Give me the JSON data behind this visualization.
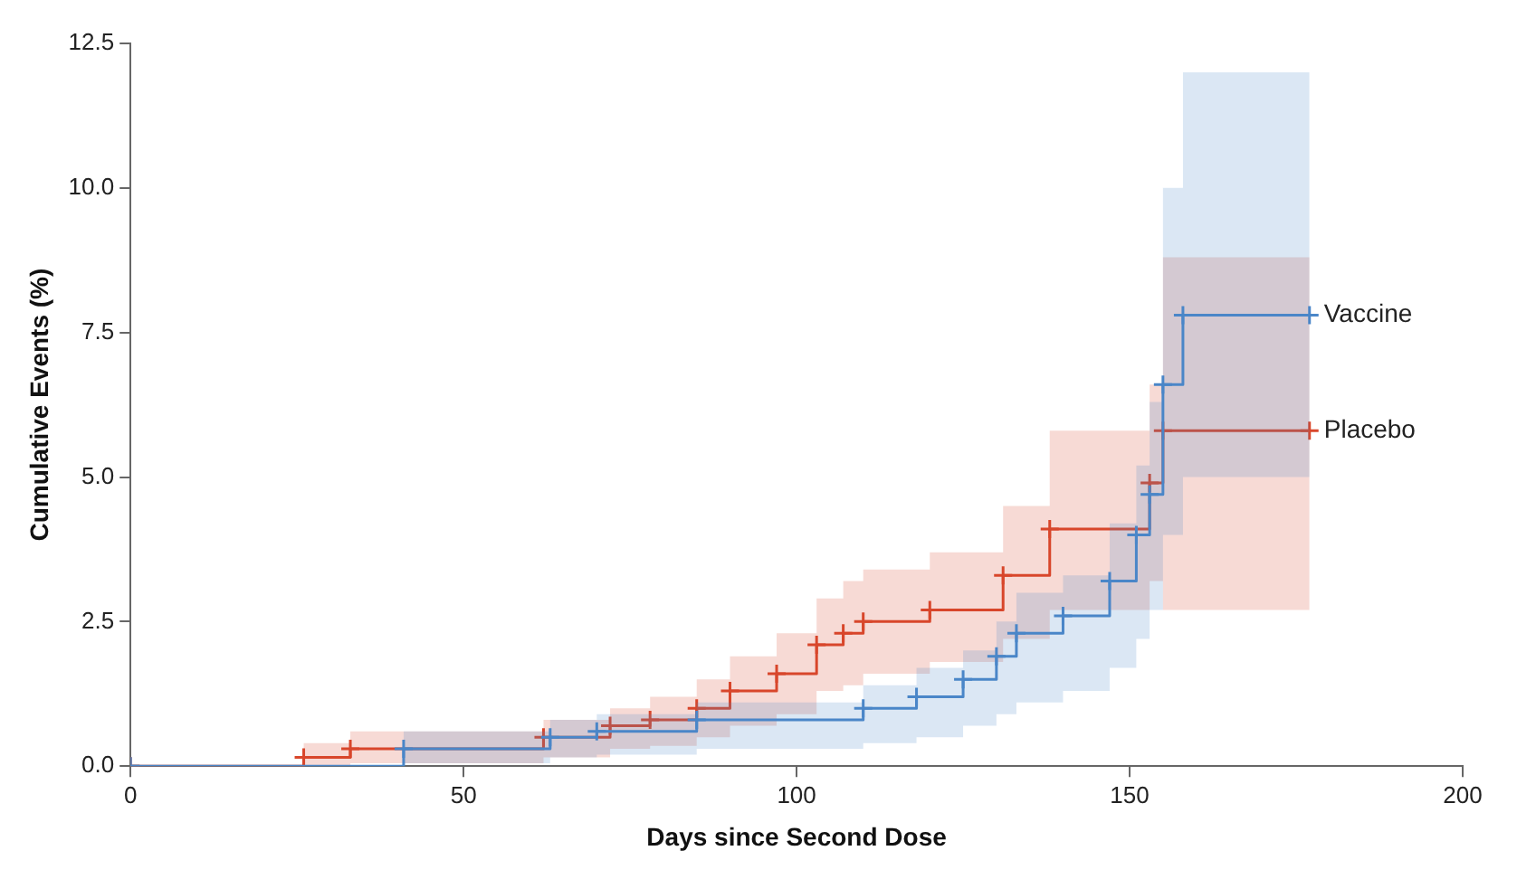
{
  "chart_data": {
    "type": "step",
    "xlabel": "Days since Second Dose",
    "ylabel": "Cumulative Events (%)",
    "xlim": [
      0,
      200
    ],
    "xticks": [
      0,
      50,
      100,
      150,
      200
    ],
    "ylim": [
      0,
      12.5
    ],
    "yticks": [
      {
        "value": 0,
        "label": "0.0"
      },
      2.5,
      {
        "value": 5,
        "label": "5.0"
      },
      7.5,
      {
        "value": 10,
        "label": "10.0"
      },
      12.5
    ],
    "grid": false,
    "legend": false,
    "marker": "cross",
    "line_style": "solid",
    "series": [
      {
        "name": "Vaccine",
        "color": "#4a86c8",
        "x": [
          0,
          41,
          63,
          70,
          85,
          110,
          118,
          125,
          130,
          133,
          140,
          147,
          151,
          153,
          155,
          158,
          177
        ],
        "values": [
          0,
          0.3,
          0.5,
          0.6,
          0.8,
          1.0,
          1.2,
          1.5,
          1.9,
          2.3,
          2.6,
          3.2,
          4.0,
          4.7,
          6.6,
          7.8,
          7.8
        ],
        "lower": [
          0,
          0.05,
          0.15,
          0.2,
          0.3,
          0.4,
          0.5,
          0.7,
          0.9,
          1.1,
          1.3,
          1.7,
          2.2,
          2.7,
          4.0,
          5.0,
          5.0
        ],
        "upper": [
          0,
          0.6,
          0.8,
          0.9,
          1.1,
          1.4,
          1.7,
          2.0,
          2.5,
          3.0,
          3.3,
          4.2,
          5.2,
          6.3,
          10.0,
          12.0,
          12.0
        ]
      },
      {
        "name": "Placebo",
        "color": "#d9472b",
        "x": [
          0,
          26,
          33,
          62,
          72,
          78,
          85,
          90,
          97,
          103,
          107,
          110,
          120,
          131,
          138,
          153,
          155,
          177
        ],
        "values": [
          0,
          0.15,
          0.3,
          0.5,
          0.7,
          0.8,
          1.0,
          1.3,
          1.6,
          2.1,
          2.3,
          2.5,
          2.7,
          3.3,
          4.1,
          4.9,
          5.8,
          5.8
        ],
        "lower": [
          0,
          0,
          0.05,
          0.15,
          0.3,
          0.35,
          0.5,
          0.7,
          0.9,
          1.3,
          1.4,
          1.6,
          1.8,
          2.2,
          2.7,
          3.2,
          2.7,
          2.7
        ],
        "upper": [
          0,
          0.4,
          0.6,
          0.8,
          1.0,
          1.2,
          1.5,
          1.9,
          2.3,
          2.9,
          3.2,
          3.4,
          3.7,
          4.5,
          5.8,
          6.6,
          8.8,
          8.8
        ]
      }
    ]
  }
}
